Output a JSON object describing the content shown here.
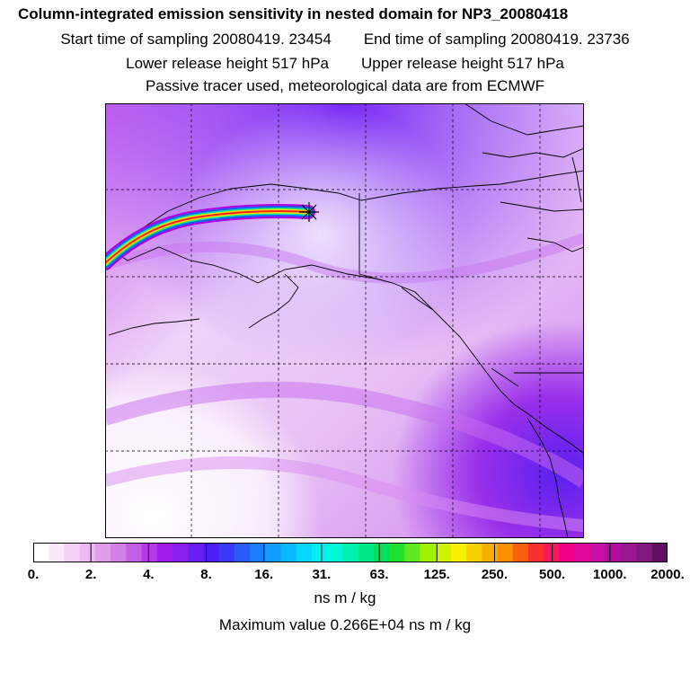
{
  "titles": {
    "main": "Column-integrated emission sensitivity in nested domain for NP3_20080418",
    "start": "Start time of sampling 20080419. 23454",
    "end": "End time of sampling 20080419. 23736",
    "lower": "Lower release height  517 hPa",
    "upper": "Upper release height  517 hPa",
    "tracer": "Passive tracer used, meteorological data are from ECMWF"
  },
  "colorbar": {
    "tick_labels": [
      "0.",
      "2.",
      "4.",
      "8.",
      "16.",
      "31.",
      "63.",
      "125.",
      "250.",
      "500.",
      "1000.",
      "2000."
    ],
    "unit": "ns m / kg",
    "colors": [
      "#ffffff",
      "#fae8fb",
      "#f4d0f6",
      "#eeb8f2",
      "#e29ceb",
      "#d47ee8",
      "#c45ee6",
      "#b63ae8",
      "#a01ceb",
      "#8a20f0",
      "#6a1ff2",
      "#4a1ff5",
      "#3a3af8",
      "#2a5cfa",
      "#1a7efb",
      "#109cfc",
      "#0ab8fd",
      "#06d8fd",
      "#04eef0",
      "#00f8d8",
      "#00f0b0",
      "#00e888",
      "#00e060",
      "#20e030",
      "#60e820",
      "#a0f000",
      "#d0f000",
      "#f8f000",
      "#f8d000",
      "#f8b000",
      "#f89000",
      "#f86010",
      "#f83030",
      "#f81860",
      "#f00088",
      "#e0089c",
      "#c810a8",
      "#b010a0",
      "#981890",
      "#801880",
      "#601060"
    ]
  },
  "max_value_text": "Maximum value  0.266E+04 ns m / kg",
  "map": {
    "marker": "release-point-asterisk",
    "background_color": "#e9c8f5",
    "high_color": "#8a2be2"
  }
}
